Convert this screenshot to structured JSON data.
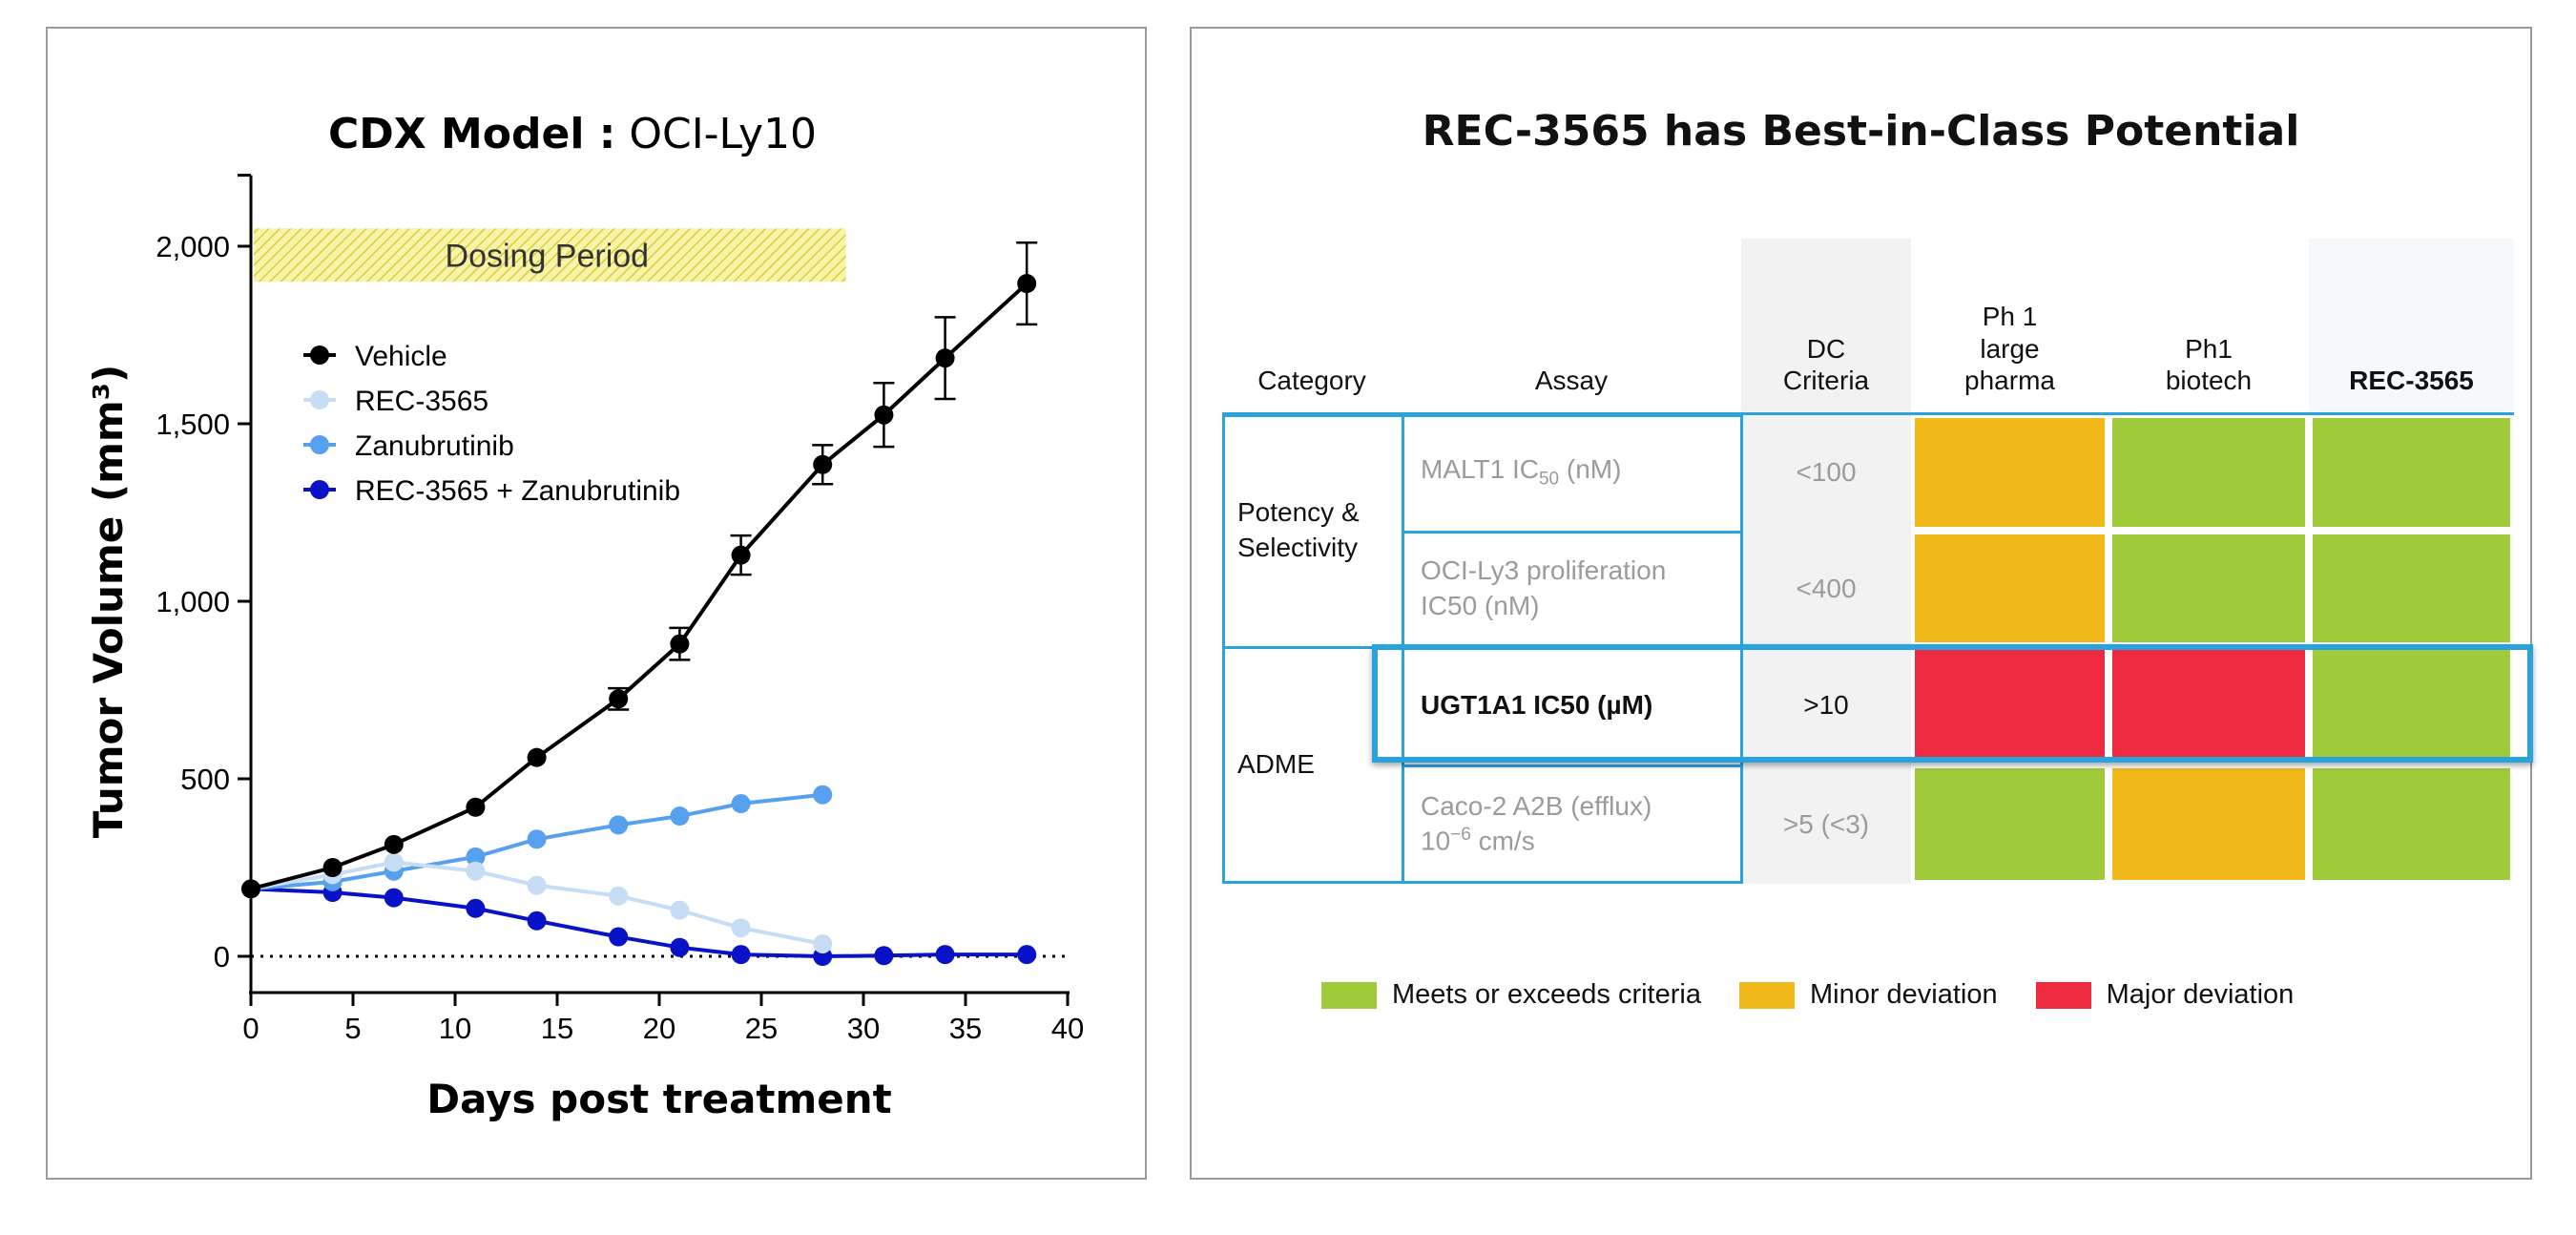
{
  "chart_data": {
    "type": "line",
    "title_bold": "CDX Model :",
    "title_rest": "OCI-Ly10",
    "xlabel": "Days post treatment",
    "ylabel": "Tumor Volume (mm³)",
    "xlim": [
      0,
      40
    ],
    "ylim": [
      0,
      2200
    ],
    "xticks": [
      "0",
      "5",
      "10",
      "15",
      "20",
      "25",
      "30",
      "35",
      "40"
    ],
    "yticks": [
      {
        "v": 0,
        "label": "0"
      },
      {
        "v": 500,
        "label": "500"
      },
      {
        "v": 1000,
        "label": "1,000"
      },
      {
        "v": 1500,
        "label": "1,500"
      },
      {
        "v": 2000,
        "label": "2,000"
      }
    ],
    "annotation": {
      "label": "Dosing Period",
      "x_range": [
        0,
        29
      ],
      "y_range": [
        1900,
        2050
      ]
    },
    "legend_placement": "upper-left",
    "series": [
      {
        "name": "Vehicle",
        "color": "#000000",
        "x": [
          0,
          4,
          7,
          11,
          14,
          18,
          21,
          24,
          28,
          31,
          34,
          38
        ],
        "y": [
          190,
          250,
          315,
          420,
          560,
          725,
          880,
          1130,
          1385,
          1525,
          1685,
          1895
        ],
        "err": [
          0,
          0,
          0,
          0,
          0,
          30,
          45,
          55,
          55,
          90,
          115,
          115
        ]
      },
      {
        "name": "REC-3565",
        "color": "#c7ddf5",
        "x": [
          0,
          4,
          7,
          11,
          14,
          18,
          21,
          24,
          28
        ],
        "y": [
          190,
          230,
          265,
          240,
          200,
          170,
          130,
          80,
          35
        ]
      },
      {
        "name": "Zanubrutinib",
        "color": "#57a0ee",
        "x": [
          0,
          4,
          7,
          11,
          14,
          18,
          21,
          24,
          28
        ],
        "y": [
          190,
          210,
          240,
          280,
          330,
          370,
          395,
          430,
          455
        ]
      },
      {
        "name": "REC-3565 + Zanubrutinib",
        "color": "#0a12c8",
        "x": [
          0,
          4,
          7,
          11,
          14,
          18,
          21,
          24,
          28,
          31,
          34,
          38
        ],
        "y": [
          190,
          180,
          165,
          135,
          100,
          55,
          25,
          5,
          0,
          2,
          5,
          5
        ]
      }
    ]
  },
  "table": {
    "title": "REC-3565 has Best-in-Class Potential",
    "headers": [
      "Category",
      "Assay",
      "DC\nCriteria",
      "Ph 1\nlarge\npharma",
      "Ph1\nbiotech",
      "REC-3565"
    ],
    "categories": [
      "Potency &\nSelectivity",
      "ADME"
    ],
    "rows": [
      {
        "assay": "MALT1 IC",
        "assay_sub": "50",
        "assay_tail": " (nM)",
        "criteria": "<100",
        "ratings": [
          "minor",
          "meets",
          "meets"
        ]
      },
      {
        "assay": "OCI-Ly3 proliferation\nIC50 (nM)",
        "criteria": "<400",
        "ratings": [
          "minor",
          "meets",
          "meets"
        ]
      },
      {
        "assay": "UGT1A1 IC50 (µM)",
        "criteria": ">10",
        "ratings": [
          "major",
          "major",
          "meets"
        ],
        "highlighted": true
      },
      {
        "assay": "Caco-2 A2B (efflux)\n10",
        "assay_sup": "−6",
        "assay_tail": " cm/s",
        "criteria": ">5 (<3)",
        "ratings": [
          "meets",
          "minor",
          "meets"
        ]
      }
    ],
    "colors": {
      "meets": "#9fcb3a",
      "minor": "#f2b91b",
      "major": "#ee2a40",
      "border": "#29a3dc"
    },
    "legend": [
      {
        "key": "meets",
        "label": "Meets or exceeds criteria"
      },
      {
        "key": "minor",
        "label": "Minor deviation"
      },
      {
        "key": "major",
        "label": "Major deviation"
      }
    ]
  }
}
